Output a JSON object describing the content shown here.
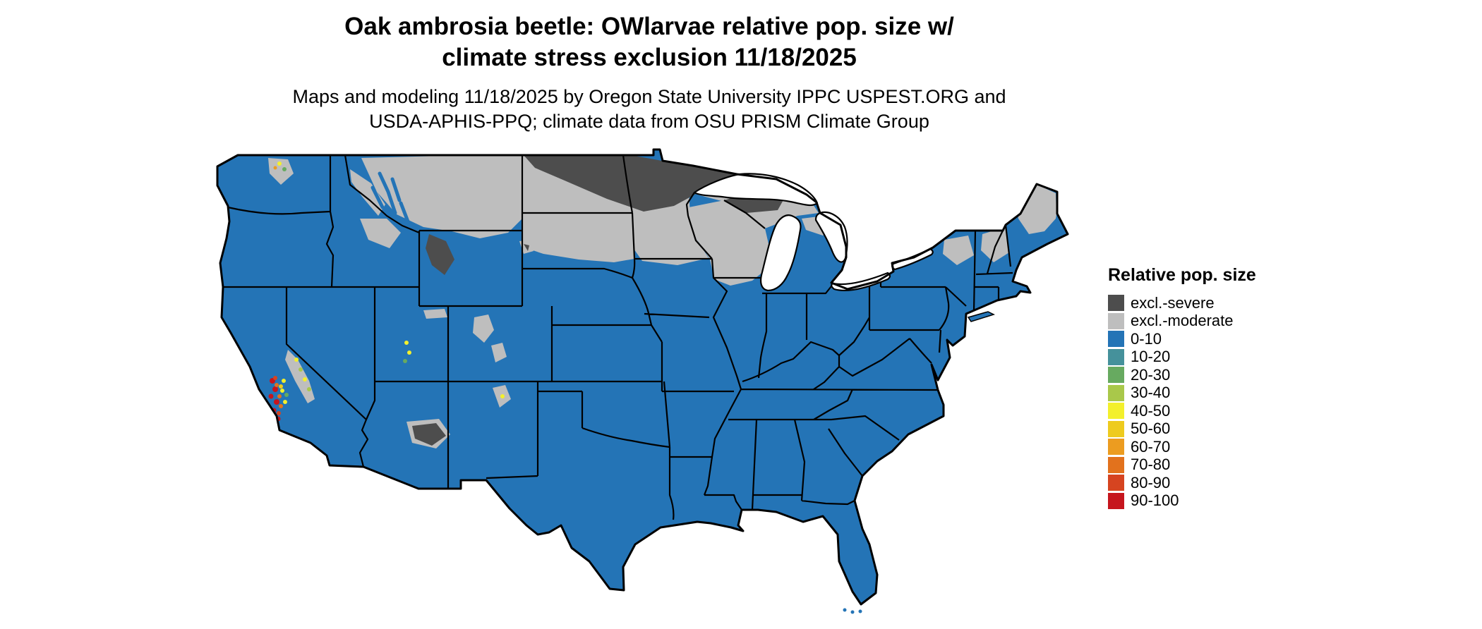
{
  "header": {
    "title": "Oak ambrosia beetle: OWlarvae relative pop. size w/ climate stress exclusion 11/18/2025",
    "subtitle": "Maps and modeling 11/18/2025 by Oregon State University IPPC USPEST.ORG and USDA-APHIS-PPQ; climate data from OSU PRISM Climate Group"
  },
  "legend": {
    "title": "Relative pop. size",
    "items": [
      {
        "key": "excl_severe",
        "label": "excl.-severe",
        "color": "#4d4d4d"
      },
      {
        "key": "excl_moderate",
        "label": "excl.-moderate",
        "color": "#bebebe"
      },
      {
        "key": "v0",
        "label": "0-10",
        "color": "#2474b6"
      },
      {
        "key": "v10",
        "label": "10-20",
        "color": "#45919b"
      },
      {
        "key": "v20",
        "label": "20-30",
        "color": "#67aa60"
      },
      {
        "key": "v30",
        "label": "30-40",
        "color": "#a9c84a"
      },
      {
        "key": "v40",
        "label": "40-50",
        "color": "#f3f02c"
      },
      {
        "key": "v50",
        "label": "50-60",
        "color": "#eecb1e"
      },
      {
        "key": "v60",
        "label": "60-70",
        "color": "#ec9c20"
      },
      {
        "key": "v70",
        "label": "70-80",
        "color": "#e2721d"
      },
      {
        "key": "v80",
        "label": "80-90",
        "color": "#d64420"
      },
      {
        "key": "v90",
        "label": "90-100",
        "color": "#c6151d"
      }
    ]
  },
  "map": {
    "region": "Continental United States",
    "colors": {
      "water": "#ffffff",
      "border": "#000000"
    }
  }
}
